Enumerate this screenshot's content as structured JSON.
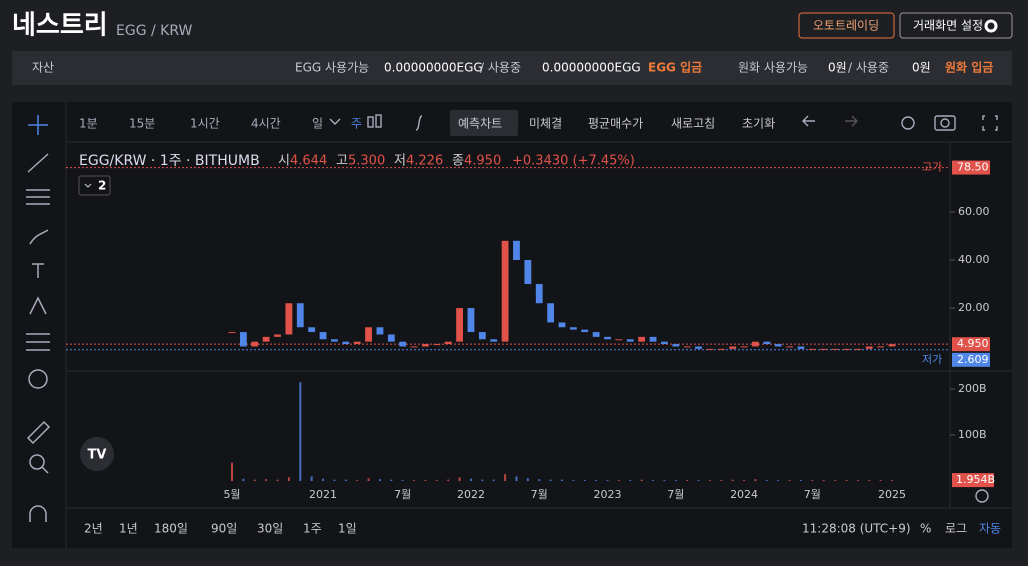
{
  "header": {
    "title": "네스트리",
    "pair": "EGG / KRW",
    "buttons": [
      "오토트레이딩",
      "거래화면 설정"
    ]
  },
  "assets": {
    "label": "자산",
    "coin_available": "EGG 사용가능",
    "coin_available_amount": "0.00000000EGG",
    "coin_in_use": "/ 사용중",
    "coin_in_use_amount": "0.00000000EGG",
    "coin_deposit": "EGG 입금",
    "krw_available": "원화 사용가능",
    "krw_available_amount": "0원",
    "krw_in_use": "/ 사용중",
    "krw_in_use_amount": "0원",
    "krw_deposit": "원화 입금"
  },
  "toolbar": {
    "intervals": [
      "1분",
      "15분",
      "1시간",
      "4시간",
      "일",
      "주"
    ],
    "active_interval": 5,
    "buttons": [
      "예측차트",
      "미체결",
      "평균매수가",
      "새로고침",
      "초기화"
    ],
    "active_button": 0
  },
  "legend": {
    "symbol": "EGG/KRW · 1주 · BITHUMB",
    "open_label": "시",
    "open": "4.644",
    "high_label": "고",
    "high": "5.300",
    "low_label": "저",
    "low": "4.226",
    "close_label": "종",
    "close": "4.950",
    "change": "+0.3430 (+7.45%)",
    "indicator_count": "2"
  },
  "chart_data": {
    "type": "candlestick",
    "categories": [
      "5월",
      null,
      null,
      null,
      null,
      null,
      null,
      null,
      "2021",
      null,
      null,
      null,
      null,
      null,
      null,
      "7월",
      null,
      null,
      null,
      null,
      null,
      "2022",
      null,
      null,
      null,
      null,
      null,
      "7월",
      null,
      null,
      null,
      null,
      null,
      "2023",
      null,
      null,
      null,
      null,
      null,
      "7월",
      null,
      null,
      null,
      null,
      null,
      "2024",
      null,
      null,
      null,
      null,
      null,
      "7월",
      null,
      null,
      null,
      null,
      null,
      null,
      "2025"
    ],
    "values": [
      10,
      4,
      6,
      8,
      9,
      22,
      12,
      10,
      7,
      6,
      5,
      6,
      12,
      9,
      6,
      4,
      4,
      5,
      5,
      6,
      20,
      10,
      7,
      6,
      48,
      40,
      30,
      22,
      14,
      12,
      11,
      10,
      8,
      7,
      7,
      6,
      8,
      6,
      5,
      4,
      4,
      3,
      3,
      3,
      4,
      4,
      6,
      5,
      4,
      4,
      3,
      3,
      3,
      3,
      3,
      3,
      4,
      4,
      4.95
    ],
    "ylim": [
      -5.8,
      87.9
    ],
    "yticks": [
      {
        "value": 60,
        "label": "60.00"
      },
      {
        "value": 40,
        "label": "40.00"
      },
      {
        "value": 20,
        "label": "20.00"
      }
    ],
    "high_marker": {
      "name": "고가",
      "value": 78.5,
      "label": "78.50"
    },
    "low_marker": {
      "name": "저가",
      "value": 2.609,
      "label": "2.609"
    },
    "last_price": {
      "value": 4.95,
      "label": "4.950"
    },
    "up_color": "#e0524a",
    "down_color": "#4f86e8",
    "volume": {
      "values": [
        40,
        5,
        3,
        4,
        3,
        8,
        215,
        10,
        5,
        3,
        3,
        2,
        6,
        4,
        3,
        2,
        2,
        2,
        2,
        3,
        8,
        5,
        3,
        3,
        15,
        10,
        6,
        4,
        3,
        3,
        2,
        2,
        2,
        2,
        2,
        2,
        3,
        2,
        2,
        2,
        2,
        2,
        2,
        2,
        3,
        2,
        4,
        2,
        2,
        2,
        2,
        2,
        2,
        2,
        2,
        2,
        2,
        2,
        1.954
      ],
      "ylim": [
        -6.5,
        237
      ],
      "yticks": [
        {
          "value": 200,
          "label": "200B"
        },
        {
          "value": 100,
          "label": "100B"
        }
      ],
      "last_label": "1.954B"
    }
  },
  "footer": {
    "ranges": [
      "2년",
      "1년",
      "180일",
      "90일",
      "30일",
      "1주",
      "1일"
    ],
    "clock": "11:28:08 (UTC+9)",
    "options": [
      "%",
      "로그",
      "자동"
    ],
    "active_option": 2
  }
}
